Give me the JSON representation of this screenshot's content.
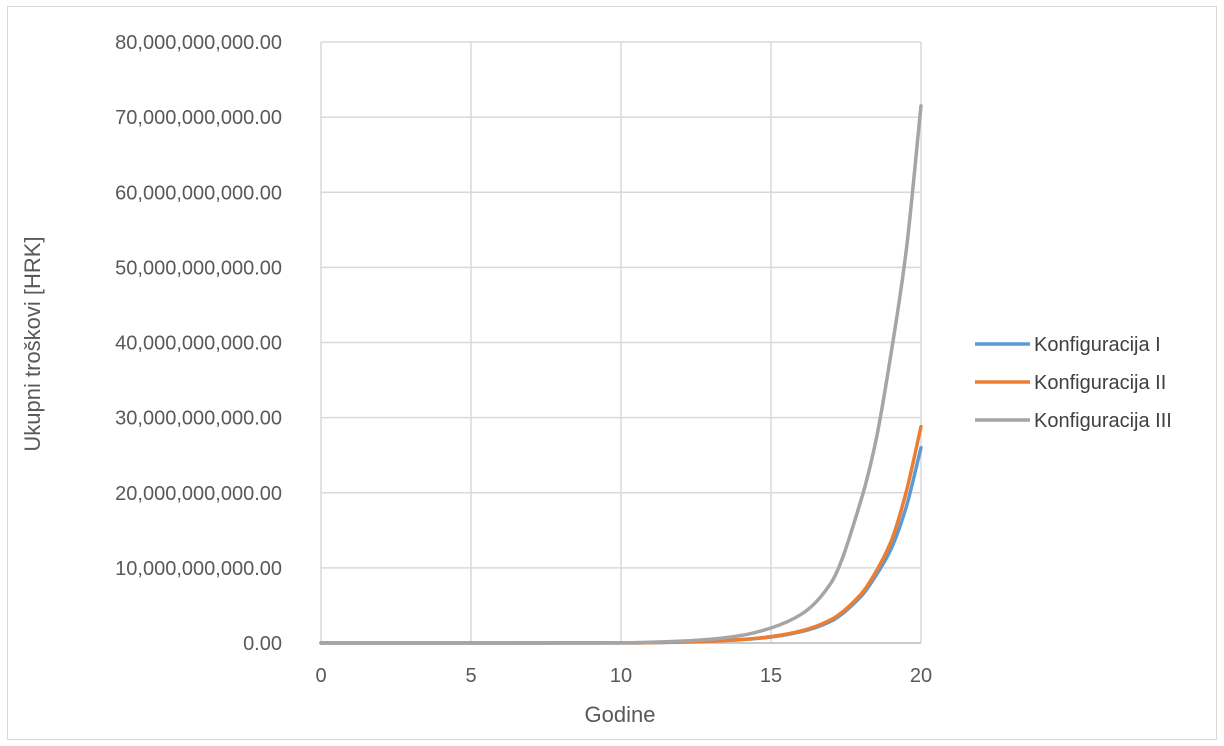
{
  "chart_data": {
    "type": "line",
    "title": "",
    "xlabel": "Godine",
    "ylabel": "Ukupni troškovi [HRK]",
    "xlim": [
      0,
      20
    ],
    "ylim": [
      0,
      80000000000
    ],
    "x_ticks": [
      0,
      5,
      10,
      15,
      20
    ],
    "x_tick_labels": [
      "0",
      "5",
      "10",
      "15",
      "20"
    ],
    "y_ticks": [
      0,
      10000000000,
      20000000000,
      30000000000,
      40000000000,
      50000000000,
      60000000000,
      70000000000,
      80000000000
    ],
    "y_tick_labels": [
      "0.00",
      "10,000,000,000.00",
      "20,000,000,000.00",
      "30,000,000,000.00",
      "40,000,000,000.00",
      "50,000,000,000.00",
      "60,000,000,000.00",
      "70,000,000,000.00",
      "80,000,000,000.00"
    ],
    "grid": true,
    "legend_position": "right",
    "x": [
      0,
      5,
      10,
      11,
      12,
      13,
      14,
      15,
      16,
      17,
      18,
      18.5,
      19,
      19.5,
      20
    ],
    "series": [
      {
        "name": "Konfiguracija I",
        "color": "#5b9bd5",
        "values": [
          0,
          0,
          10000000,
          50000000,
          120000000,
          250000000,
          450000000,
          800000000,
          1500000000,
          2900000000,
          6200000000,
          9000000000,
          12500000000,
          18000000000,
          26000000000
        ]
      },
      {
        "name": "Konfiguracija II",
        "color": "#ed7d31",
        "values": [
          0,
          0,
          10000000,
          50000000,
          120000000,
          250000000,
          450000000,
          850000000,
          1600000000,
          3100000000,
          6500000000,
          9500000000,
          13500000000,
          20000000000,
          28800000000
        ]
      },
      {
        "name": "Konfiguracija III",
        "color": "#a5a5a5",
        "values": [
          0,
          0,
          20000000,
          100000000,
          250000000,
          500000000,
          1000000000,
          2000000000,
          3800000000,
          8000000000,
          19000000000,
          27000000000,
          38500000000,
          52000000000,
          71500000000
        ]
      }
    ]
  }
}
